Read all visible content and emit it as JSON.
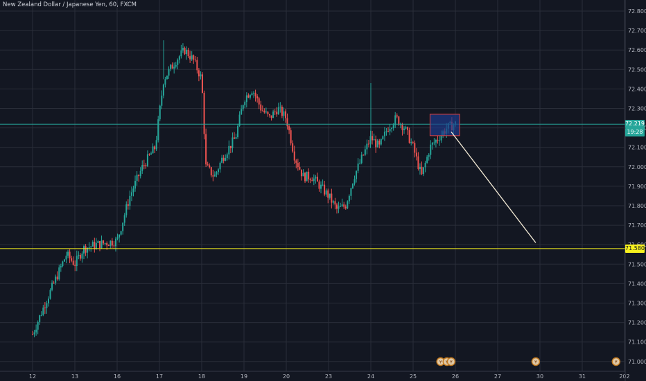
{
  "header": {
    "title": "New Zealand Dollar / Japanese Yen, 60, FXCM"
  },
  "colors": {
    "background": "#131722",
    "grid": "#2a2e39",
    "up": "#26a69a",
    "down": "#ef5350",
    "current_line": "#26a69a",
    "level_line": "#f7f11e",
    "projection": "#f5ecd7",
    "box_fill": "#1e3a8a",
    "box_stroke": "#e04040"
  },
  "chart_data": {
    "type": "candlestick",
    "symbol": "NZDJPY",
    "interval": "60",
    "source": "FXCM",
    "ylim": [
      70.96,
      72.84
    ],
    "y_ticks": [
      "72.800",
      "72.700",
      "72.600",
      "72.500",
      "72.400",
      "72.300",
      "72.200",
      "72.100",
      "72.000",
      "71.900",
      "71.800",
      "71.700",
      "71.600",
      "71.500",
      "71.400",
      "71.300",
      "71.200",
      "71.100",
      "71.000"
    ],
    "x_ticks": [
      "12",
      "13",
      "16",
      "17",
      "18",
      "19",
      "20",
      "23",
      "24",
      "25",
      "26",
      "27",
      "30",
      "31",
      "202"
    ],
    "current_price": {
      "value": "72.219",
      "countdown": "19:28",
      "price": 72.219
    },
    "level_line": {
      "price": 71.58,
      "label": "71.580"
    },
    "price_path": [
      [
        0.0,
        71.14
      ],
      [
        0.3,
        71.3
      ],
      [
        0.6,
        71.45
      ],
      [
        0.8,
        71.55
      ],
      [
        1.0,
        71.5
      ],
      [
        1.2,
        71.58
      ],
      [
        1.5,
        71.6
      ],
      [
        2.0,
        71.62
      ],
      [
        2.3,
        71.85
      ],
      [
        2.6,
        72.0
      ],
      [
        2.9,
        72.1
      ],
      [
        3.1,
        72.45
      ],
      [
        3.4,
        72.55
      ],
      [
        3.6,
        72.6
      ],
      [
        3.8,
        72.55
      ],
      [
        4.0,
        72.45
      ],
      [
        4.1,
        72.0
      ],
      [
        4.3,
        71.95
      ],
      [
        4.5,
        72.05
      ],
      [
        4.8,
        72.15
      ],
      [
        5.0,
        72.35
      ],
      [
        5.2,
        72.4
      ],
      [
        5.4,
        72.3
      ],
      [
        5.6,
        72.25
      ],
      [
        5.8,
        72.3
      ],
      [
        6.0,
        72.25
      ],
      [
        6.2,
        72.05
      ],
      [
        6.4,
        71.95
      ],
      [
        6.6,
        71.95
      ],
      [
        6.8,
        71.9
      ],
      [
        7.0,
        71.85
      ],
      [
        7.2,
        71.78
      ],
      [
        7.4,
        71.8
      ],
      [
        7.6,
        71.95
      ],
      [
        7.8,
        72.05
      ],
      [
        8.0,
        72.15
      ],
      [
        8.2,
        72.1
      ],
      [
        8.4,
        72.2
      ],
      [
        8.6,
        72.25
      ],
      [
        8.8,
        72.2
      ],
      [
        9.0,
        72.1
      ],
      [
        9.2,
        71.95
      ],
      [
        9.4,
        72.1
      ],
      [
        9.6,
        72.15
      ],
      [
        9.8,
        72.2
      ],
      [
        10.0,
        72.22
      ]
    ],
    "wick_range": 0.06,
    "spikes": [
      [
        3.1,
        72.65
      ],
      [
        8.0,
        72.43
      ]
    ],
    "rectangle": {
      "x_from": 9.4,
      "x_to": 10.1,
      "price_from": 72.16,
      "price_to": 72.27
    },
    "projection_line": {
      "from": [
        9.9,
        72.18
      ],
      "to": [
        11.9,
        71.61
      ]
    },
    "event_markers": [
      {
        "x": 9.65,
        "label": "¥"
      },
      {
        "x": 9.8,
        "label": "¥"
      },
      {
        "x": 9.9,
        "label": "¥"
      },
      {
        "x": 11.9,
        "label": "¥"
      },
      {
        "x": 13.8,
        "label": "¥"
      }
    ]
  }
}
